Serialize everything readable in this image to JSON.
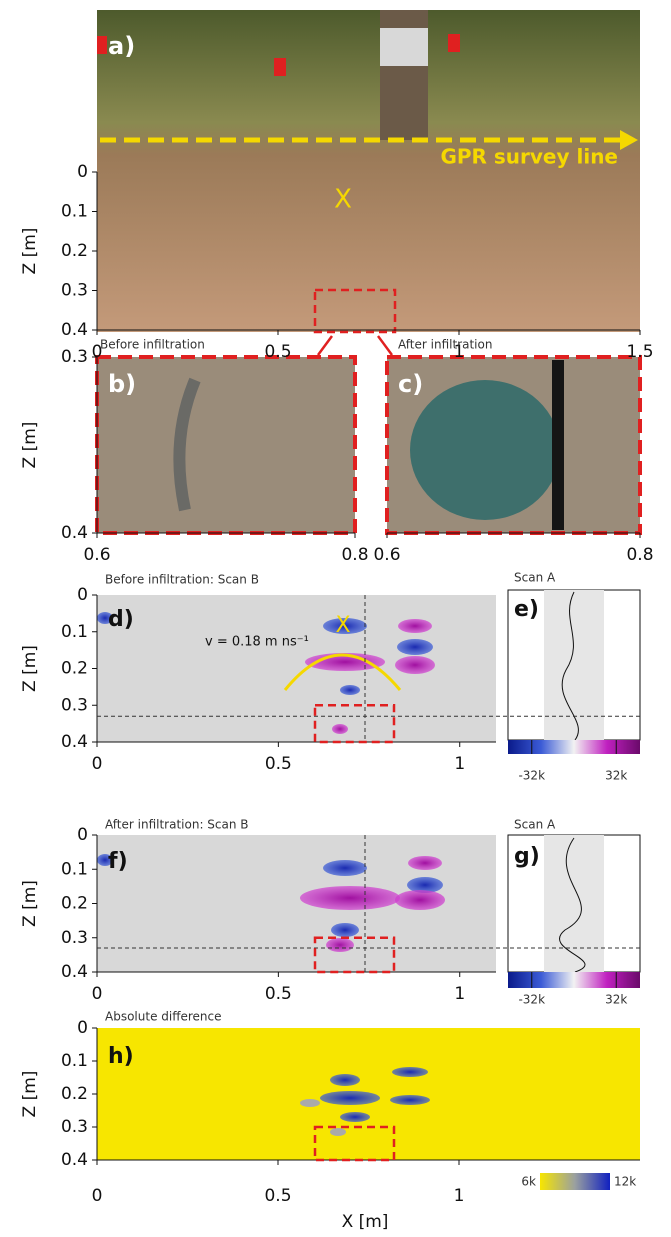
{
  "z_label": "Z [m]",
  "x_label": "X [m]",
  "panels": {
    "a": {
      "label": "a)",
      "marker": "X",
      "survey_line": "GPR survey line",
      "xlim": [
        0,
        1.5
      ],
      "zlim": [
        0,
        0.4
      ],
      "xticks": [
        0,
        0.5,
        1,
        1.5
      ],
      "zticks": [
        0,
        0.1,
        0.2,
        0.3,
        0.4
      ]
    },
    "b": {
      "label": "b)",
      "title": "Before infiltration",
      "xlim": [
        0.6,
        0.8
      ],
      "zlim": [
        0.3,
        0.4
      ],
      "xticks": [
        0.6,
        0.8
      ],
      "zticks": [
        0.3,
        0.4
      ]
    },
    "c": {
      "label": "c)",
      "title": "After infiltration",
      "xlim": [
        0.6,
        0.8
      ],
      "zlim": [
        0.3,
        0.4
      ],
      "xticks": [
        0.6,
        0.8
      ]
    },
    "d": {
      "label": "d)",
      "title": "Before infiltration: Scan B",
      "marker": "X",
      "velocity": "v = 0.18 m ns⁻¹",
      "xlim": [
        0,
        1.1
      ],
      "zlim": [
        0,
        0.4
      ],
      "xticks": [
        0,
        0.5,
        1
      ],
      "zticks": [
        0,
        0.1,
        0.2,
        0.3,
        0.4
      ]
    },
    "e": {
      "label": "e)",
      "title": "Scan A",
      "colorbar_ticks": [
        {
          "value": -32000,
          "label": "-32k"
        },
        {
          "value": 32000,
          "label": "32k"
        }
      ],
      "clim": [
        -50000,
        50000
      ]
    },
    "f": {
      "label": "f)",
      "title": "After infiltration: Scan B",
      "xlim": [
        0,
        1.1
      ],
      "zlim": [
        0,
        0.4
      ],
      "xticks": [
        0,
        0.5,
        1
      ],
      "zticks": [
        0,
        0.1,
        0.2,
        0.3,
        0.4
      ]
    },
    "g": {
      "label": "g)",
      "title": "Scan A",
      "colorbar_ticks": [
        {
          "value": -32000,
          "label": "-32k"
        },
        {
          "value": 32000,
          "label": "32k"
        }
      ],
      "clim": [
        -50000,
        50000
      ]
    },
    "h": {
      "label": "h)",
      "title": "Absolute difference",
      "xlim": [
        0,
        1.5
      ],
      "zlim": [
        0,
        0.4
      ],
      "xticks": [
        0,
        0.5,
        1
      ],
      "zticks": [
        0,
        0.1,
        0.2,
        0.3,
        0.4
      ],
      "colorbar_ticks": [
        {
          "value": 6000,
          "label": "6k"
        },
        {
          "value": 12000,
          "label": "12k"
        }
      ],
      "clim": [
        6000,
        12000
      ]
    }
  }
}
